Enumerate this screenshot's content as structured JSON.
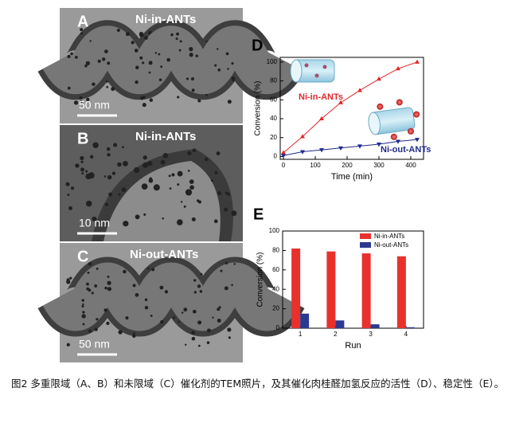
{
  "panels": [
    {
      "letter": "A",
      "label": "Ni-in-ANTs",
      "scale": "50 nm"
    },
    {
      "letter": "B",
      "label": "Ni-in-ANTs",
      "scale": "10 nm"
    },
    {
      "letter": "C",
      "label": "Ni-out-ANTs",
      "scale": "50 nm"
    }
  ],
  "chart_data": [
    {
      "type": "line",
      "panel": "D",
      "x_label": "Time (min)",
      "y_label": "Conversion (%)",
      "x": [
        0,
        60,
        120,
        180,
        240,
        300,
        360,
        420
      ],
      "series": [
        {
          "name": "Ni-in-ANTs",
          "color": "#e3262a",
          "marker": "triangle-up",
          "values": [
            4,
            21,
            40,
            57,
            70,
            82,
            93,
            100
          ]
        },
        {
          "name": "Ni-out-ANTs",
          "color": "#1f2a8c",
          "marker": "triangle-down",
          "values": [
            1,
            5,
            7,
            9,
            11,
            13,
            16,
            18
          ]
        }
      ],
      "xlim": [
        -10,
        440
      ],
      "xticks": [
        0,
        100,
        200,
        300,
        400
      ],
      "ylim": [
        -3,
        105
      ],
      "yticks": [
        0,
        20,
        40,
        60,
        80,
        100
      ]
    },
    {
      "type": "bar",
      "panel": "E",
      "x_label": "Run",
      "y_label": "Conversion (%)",
      "categories": [
        "1",
        "2",
        "3",
        "4"
      ],
      "series": [
        {
          "name": "Ni-in-ANTs",
          "color": "#e8312d",
          "values": [
            82,
            79,
            77,
            74
          ]
        },
        {
          "name": "Ni-out-ANTs",
          "color": "#2b3990",
          "values": [
            15,
            8,
            4,
            1
          ]
        }
      ],
      "ylim": [
        0,
        100
      ],
      "yticks": [
        0,
        20,
        40,
        60,
        80,
        100
      ],
      "legend": "upper right"
    }
  ],
  "caption": "图2 多重限域（A、B）和未限域（C）催化剂的TEM照片，及其催化肉桂醛加氢反应的活性（D）、稳定性（E）。"
}
